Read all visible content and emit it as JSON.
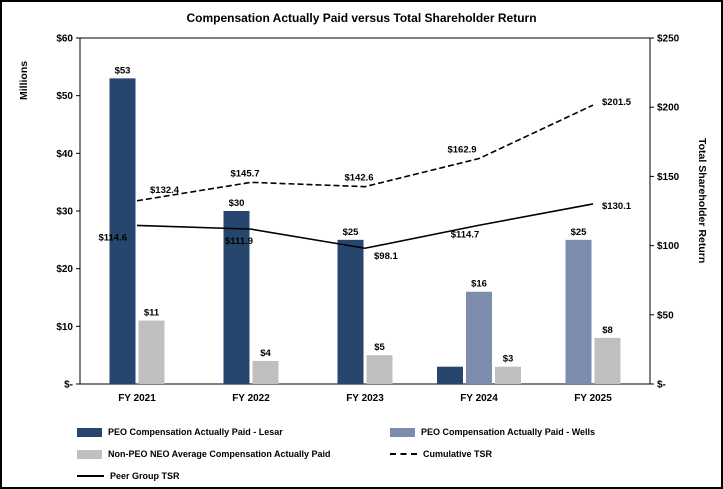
{
  "chart_data": {
    "type": "bar+line",
    "title": "Compensation Actually Paid versus Total Shareholder Return",
    "categories": [
      "FY 2021",
      "FY 2022",
      "FY 2023",
      "FY 2024",
      "FY 2025"
    ],
    "bar_series": [
      {
        "key": "lesar",
        "name": "PEO Compensation Actually Paid - Lesar",
        "color": "#26466e",
        "values": [
          53,
          30,
          25,
          3,
          null
        ],
        "labels": [
          "$53",
          "$30",
          "$25",
          null,
          null
        ]
      },
      {
        "key": "wells",
        "name": "PEO Compensation Actually Paid - Wells",
        "color": "#7d8cac",
        "values": [
          null,
          null,
          null,
          16,
          25
        ],
        "labels": [
          null,
          null,
          null,
          "$16",
          "$25"
        ]
      },
      {
        "key": "non-peo-avg",
        "name": "Non-PEO NEO Average Compensation Actually Paid",
        "color": "#bfbfbf",
        "values": [
          11,
          4,
          5,
          3,
          8
        ],
        "labels": [
          "$11",
          "$4",
          "$5",
          "$3",
          "$8"
        ]
      }
    ],
    "line_series": [
      {
        "key": "cumulative-tsr",
        "name": "Cumulative TSR",
        "color": "#000000",
        "dash": true,
        "values": [
          132.4,
          145.7,
          142.6,
          162.9,
          201.5
        ],
        "labels": [
          "$132.4",
          "$145.7",
          "$142.6",
          "$162.9",
          "$201.5"
        ]
      },
      {
        "key": "peer-group-tsr",
        "name": "Peer Group TSR",
        "color": "#000000",
        "dash": false,
        "values": [
          114.6,
          111.9,
          98.1,
          114.7,
          130.1
        ],
        "labels": [
          "$114.6",
          "$111.9",
          "$98.1",
          "$114.7",
          "$130.1"
        ]
      }
    ],
    "left_axis": {
      "title": "Millions",
      "min": 0,
      "max": 60,
      "ticks": [
        "$-",
        "$10",
        "$20",
        "$30",
        "$40",
        "$50",
        "$60"
      ]
    },
    "right_axis": {
      "title": "Total Shareholder Return",
      "min": 0,
      "max": 250,
      "ticks": [
        "$-",
        "$50",
        "$100",
        "$150",
        "$200",
        "$250"
      ]
    },
    "legend_position": "bottom",
    "grid": false
  },
  "legend": {
    "items": [
      {
        "key": "lesar",
        "label": "PEO Compensation Actually Paid - Lesar",
        "swatch": "bar",
        "color": "#26466e"
      },
      {
        "key": "wells",
        "label": "PEO Compensation Actually Paid - Wells",
        "swatch": "bar",
        "color": "#7d8cac"
      },
      {
        "key": "non-peo-avg",
        "label": "Non-PEO NEO Average Compensation Actually Paid",
        "swatch": "bar",
        "color": "#bfbfbf"
      },
      {
        "key": "cumulative-tsr",
        "label": "Cumulative TSR",
        "swatch": "dashed-line",
        "color": "#000000"
      },
      {
        "key": "peer-group-tsr",
        "label": "Peer Group TSR",
        "swatch": "solid-line",
        "color": "#000000"
      }
    ]
  }
}
